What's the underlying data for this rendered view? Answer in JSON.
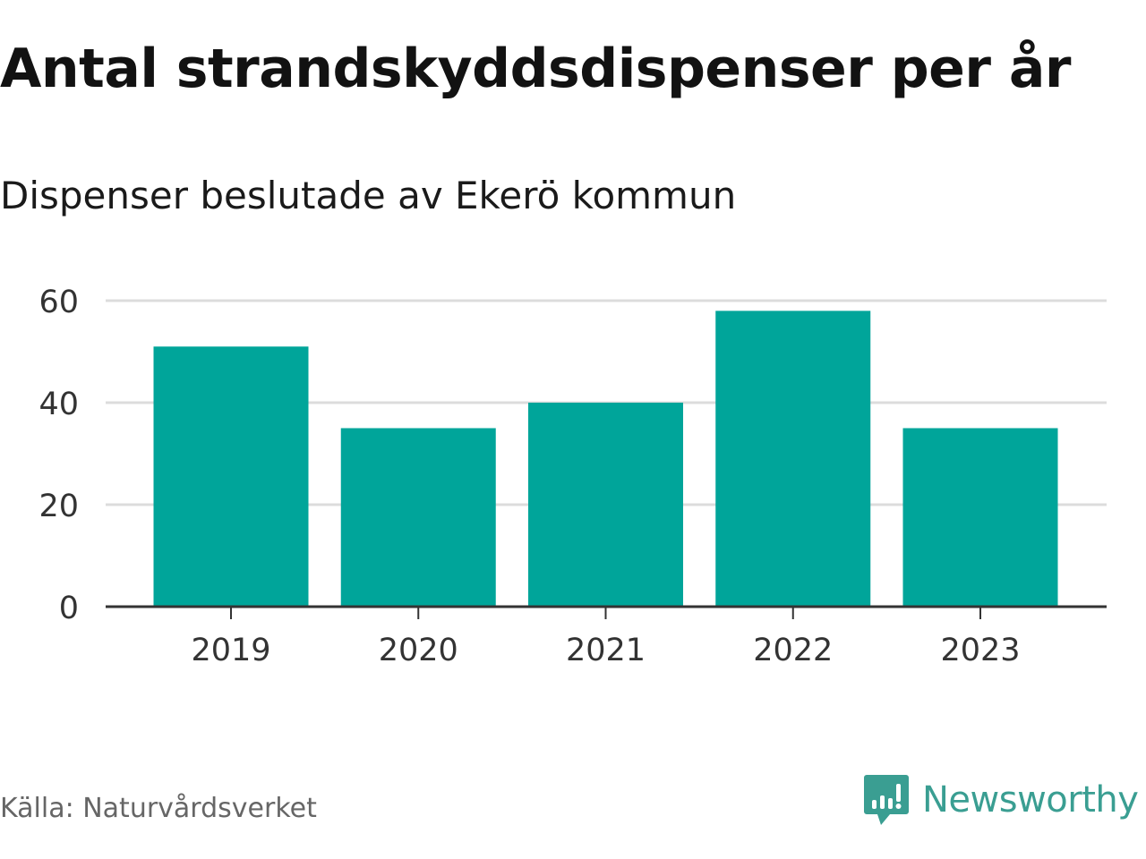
{
  "chart_data": {
    "type": "bar",
    "title": "Antal strandskyddsdispenser per år",
    "subtitle": "Dispenser beslutade av Ekerö kommun",
    "categories": [
      "2019",
      "2020",
      "2021",
      "2022",
      "2023"
    ],
    "values": [
      51,
      35,
      40,
      58,
      35
    ],
    "yticks": [
      0,
      20,
      40,
      60
    ],
    "ylim": [
      0,
      60
    ],
    "xlabel": "",
    "ylabel": "",
    "grid": true,
    "bar_color": "#00a59a"
  },
  "footer": {
    "source": "Källa: Naturvårdsverket",
    "brand": "Newsworthy",
    "brand_color": "#3a9e92"
  }
}
